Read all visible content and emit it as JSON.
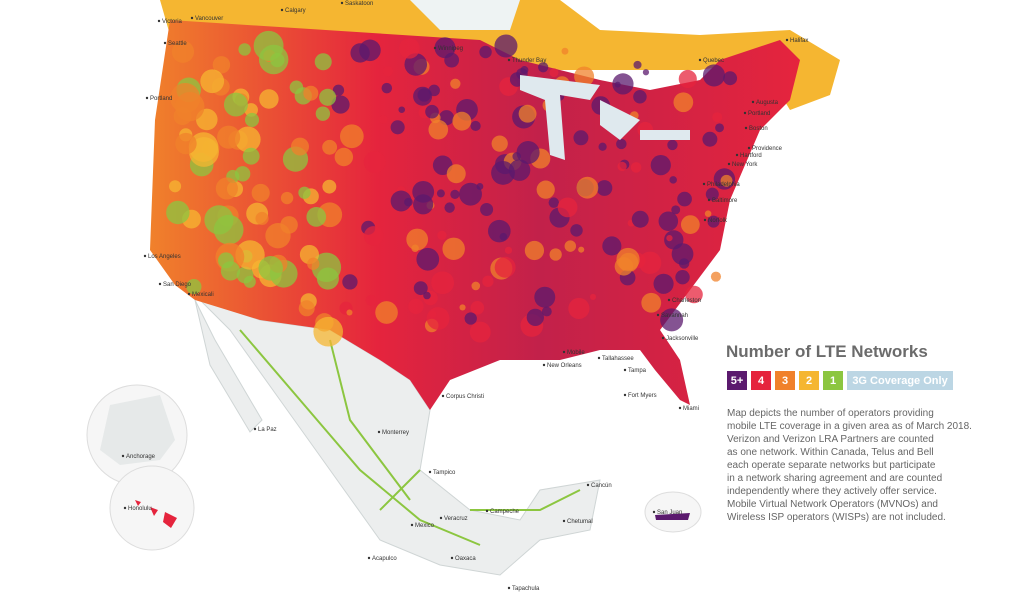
{
  "legend": {
    "title": "Number of LTE Networks",
    "items": [
      {
        "label": "5+",
        "color": "#5b1a6e"
      },
      {
        "label": "4",
        "color": "#e5243d"
      },
      {
        "label": "3",
        "color": "#f0812b"
      },
      {
        "label": "2",
        "color": "#f5b631"
      },
      {
        "label": "1",
        "color": "#8cc640"
      },
      {
        "label": "3G Coverage Only",
        "color": "#bcd6e4"
      }
    ]
  },
  "description": [
    "Map depicts the number of operators providing",
    "mobile LTE coverage in a given area as of March 2018.",
    "Verizon and Verizon LRA Partners are counted",
    "as one network. Within Canada, Telus and Bell",
    "each operate separate networks but participate",
    "in a network sharing agreement and are counted",
    "independently where they actively offer service.",
    "Mobile Virtual Network Operators (MVNOs) and",
    "Wireless ISP operators (WISPs) are not included."
  ],
  "cities": [
    "Victoria",
    "Vancouver",
    "Seattle",
    "Portland",
    "Calgary",
    "Saskatoon",
    "Winnipeg",
    "Thunder Bay",
    "Quebec",
    "Halifax",
    "Augusta",
    "Portland",
    "Boston",
    "Providence",
    "Hartford",
    "New York",
    "Philadelphia",
    "Baltimore",
    "Norfolk",
    "Charleston",
    "Savannah",
    "Jacksonville",
    "Tallahassee",
    "Mobile",
    "New Orleans",
    "Tampa",
    "Fort Myers",
    "Miami",
    "Corpus Christi",
    "Los Angeles",
    "San Diego",
    "Mexicali",
    "Anchorage",
    "Honolulu",
    "San Juan",
    "La Paz",
    "Monterrey",
    "Tampico",
    "Veracruz",
    "Campeche",
    "Cancún",
    "Chetumal",
    "Acapulco",
    "Oaxaca",
    "Tapachula",
    "Mexico"
  ]
}
